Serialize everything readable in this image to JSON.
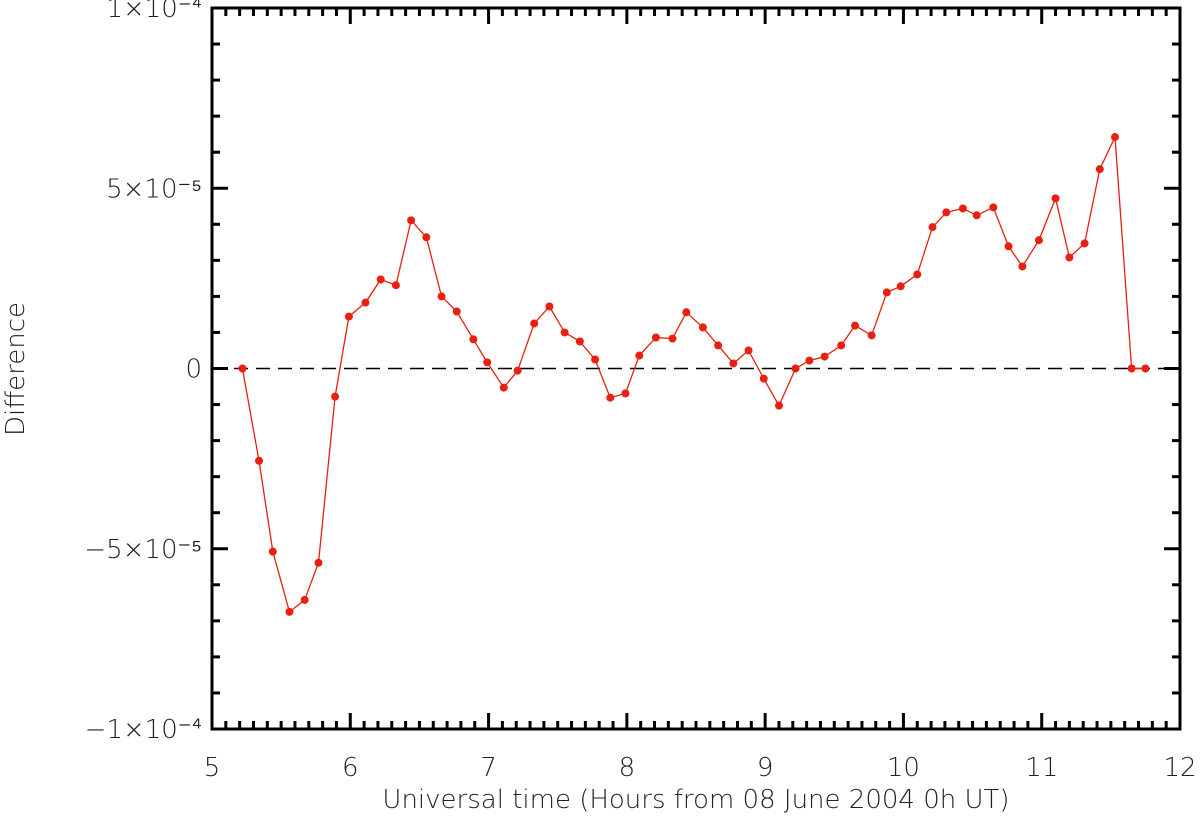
{
  "chart_data": {
    "type": "line",
    "xlabel": "Universal time (Hours from 08 June 2004 0h UT)",
    "ylabel": "Difference",
    "xlim": [
      5,
      12
    ],
    "xticks": [
      5,
      6,
      7,
      8,
      9,
      10,
      11,
      12
    ],
    "ylim": [
      -0.0001,
      0.0001
    ],
    "yticks": [
      {
        "value": -0.0001,
        "label": "−1×10⁻⁴"
      },
      {
        "value": -5e-05,
        "label": "−5×10⁻⁵"
      },
      0,
      {
        "value": 5e-05,
        "label": "5×10⁻⁵"
      },
      {
        "value": 0.0001,
        "label": "1×10⁻⁴"
      }
    ],
    "reference_line": 0,
    "x": [
      5.22,
      5.34,
      5.44,
      5.56,
      5.67,
      5.77,
      5.89,
      5.99,
      6.11,
      6.22,
      6.33,
      6.44,
      6.55,
      6.66,
      6.77,
      6.89,
      6.99,
      7.11,
      7.21,
      7.33,
      7.44,
      7.55,
      7.66,
      7.77,
      7.88,
      7.99,
      8.09,
      8.21,
      8.33,
      8.43,
      8.55,
      8.66,
      8.77,
      8.88,
      8.99,
      9.1,
      9.22,
      9.32,
      9.43,
      9.55,
      9.65,
      9.77,
      9.88,
      9.98,
      10.1,
      10.21,
      10.31,
      10.43,
      10.53,
      10.65,
      10.76,
      10.86,
      10.98,
      11.1,
      11.2,
      11.31,
      11.42,
      11.53,
      11.65,
      11.75
    ],
    "series": [
      {
        "color": "#e8200f",
        "values": [
          0,
          -2.56e-05,
          -5.08e-05,
          -6.75e-05,
          -6.42e-05,
          -5.39e-05,
          -7.8e-06,
          1.44e-05,
          1.83e-05,
          2.47e-05,
          2.31e-05,
          4.11e-05,
          3.64e-05,
          2e-05,
          1.58e-05,
          8.1e-06,
          1.7e-06,
          -5.3e-06,
          -6e-07,
          1.25e-05,
          1.72e-05,
          1e-05,
          7.5e-06,
          2.5e-06,
          -8.1e-06,
          -6.9e-06,
          3.6e-06,
          8.6e-06,
          8.3e-06,
          1.56e-05,
          1.14e-05,
          6.4e-06,
          1.4e-06,
          5e-06,
          -2.8e-06,
          -1.03e-05,
          0,
          2.2e-06,
          3.3e-06,
          6.4e-06,
          1.19e-05,
          9.2e-06,
          2.11e-05,
          2.28e-05,
          2.61e-05,
          3.92e-05,
          4.33e-05,
          4.44e-05,
          4.25e-05,
          4.47e-05,
          3.39e-05,
          2.83e-05,
          3.56e-05,
          4.72e-05,
          3.08e-05,
          3.47e-05,
          5.53e-05,
          6.42e-05,
          0,
          0
        ]
      }
    ]
  }
}
